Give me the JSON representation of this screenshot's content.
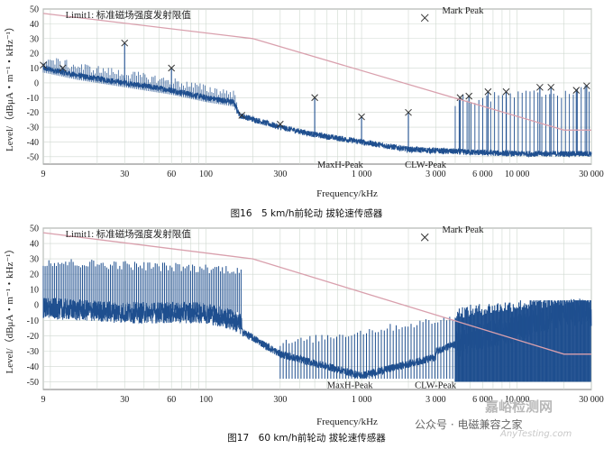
{
  "charts": [
    {
      "caption": "图16　5 km/h前轮动 拔轮速传感器",
      "limit_label": "Limit1: 标准磁场强度发射限值",
      "mark_peak_label": "Mark Peak",
      "maxh_label": "MaxH-Peak",
      "clw_label": "CLW-Peak"
    },
    {
      "caption": "图17　60 km/h前轮动 拔轮速传感器",
      "limit_label": "Limit1: 标准磁场强度发射限值",
      "mark_peak_label": "Mark Peak",
      "maxh_label": "MaxH-Peak",
      "clw_label": "CLW-Peak"
    }
  ],
  "watermark": {
    "line1": "嘉峪检测网",
    "line2": "AnyTesting.com",
    "wechat": "公众号 · 电磁兼容之家"
  },
  "chart_data": [
    {
      "type": "line",
      "title": "",
      "xlabel": "Frequency/kHz",
      "ylabel": "Level/（dBμA・m⁻¹・kHz⁻¹）",
      "xscale": "log",
      "xlim": [
        9,
        30000
      ],
      "ylim": [
        -55,
        50
      ],
      "xticks": [
        9,
        30,
        60,
        100,
        300,
        1000,
        3000,
        6000,
        10000,
        30000
      ],
      "xticklabels": [
        "9",
        "30",
        "60",
        "100",
        "300",
        "1 000",
        "3 000",
        "6 000",
        "10 000",
        "30 000"
      ],
      "yticks": [
        50,
        40,
        30,
        20,
        10,
        0,
        -10,
        -20,
        -30,
        -40,
        -50
      ],
      "grid": true,
      "series": [
        {
          "name": "Limit1: 标准磁场强度发射限值",
          "color": "#d9a0ad",
          "x": [
            9,
            200,
            20000,
            30000
          ],
          "y": [
            47,
            30,
            -32,
            -32
          ]
        },
        {
          "name": "MaxH-Peak",
          "color": "#1f4f8f",
          "x": [
            9,
            15,
            30,
            60,
            100,
            150,
            165,
            300,
            500,
            1000,
            2000,
            5000,
            10000,
            30000
          ],
          "y": [
            10,
            5,
            0,
            -5,
            -10,
            -13,
            -22,
            -30,
            -35,
            -40,
            -45,
            -47,
            -48,
            -48
          ]
        },
        {
          "name": "Mark Peak",
          "color": "#1f4f8f",
          "x": [
            9,
            12,
            30,
            60,
            170,
            300,
            500,
            1000,
            2000,
            4300,
            4900,
            6500,
            8500,
            14000,
            16500,
            24000,
            28000
          ],
          "y": [
            12,
            10,
            27,
            10,
            -22,
            -28,
            -10,
            -23,
            -20,
            -10,
            -9,
            -6,
            -6,
            -3,
            -3,
            -5,
            -2
          ]
        }
      ]
    },
    {
      "type": "line",
      "title": "",
      "xlabel": "Frequency/kHz",
      "ylabel": "Level/（dBμA・m⁻¹・kHz⁻¹）",
      "xscale": "log",
      "xlim": [
        9,
        30000
      ],
      "ylim": [
        -55,
        50
      ],
      "xticks": [
        9,
        30,
        60,
        100,
        300,
        1000,
        3000,
        6000,
        10000,
        30000
      ],
      "xticklabels": [
        "9",
        "30",
        "60",
        "100",
        "300",
        "1 000",
        "3 000",
        "6 000",
        "10 000",
        "30 000"
      ],
      "yticks": [
        50,
        40,
        30,
        20,
        10,
        0,
        -10,
        -20,
        -30,
        -40,
        -50
      ],
      "grid": true,
      "series": [
        {
          "name": "Limit1: 标准磁场强度发射限值",
          "color": "#d9a0ad",
          "x": [
            9,
            200,
            20000,
            30000
          ],
          "y": [
            47,
            30,
            -32,
            -32
          ]
        },
        {
          "name": "MaxH-Peak",
          "color": "#1f4f8f",
          "x": [
            9,
            30,
            100,
            150,
            300,
            1000,
            3000,
            6000,
            10000,
            20000,
            30000
          ],
          "y": [
            -2,
            -5,
            -5,
            -10,
            -28,
            -42,
            -30,
            -20,
            -15,
            -5,
            -5
          ]
        }
      ]
    }
  ]
}
